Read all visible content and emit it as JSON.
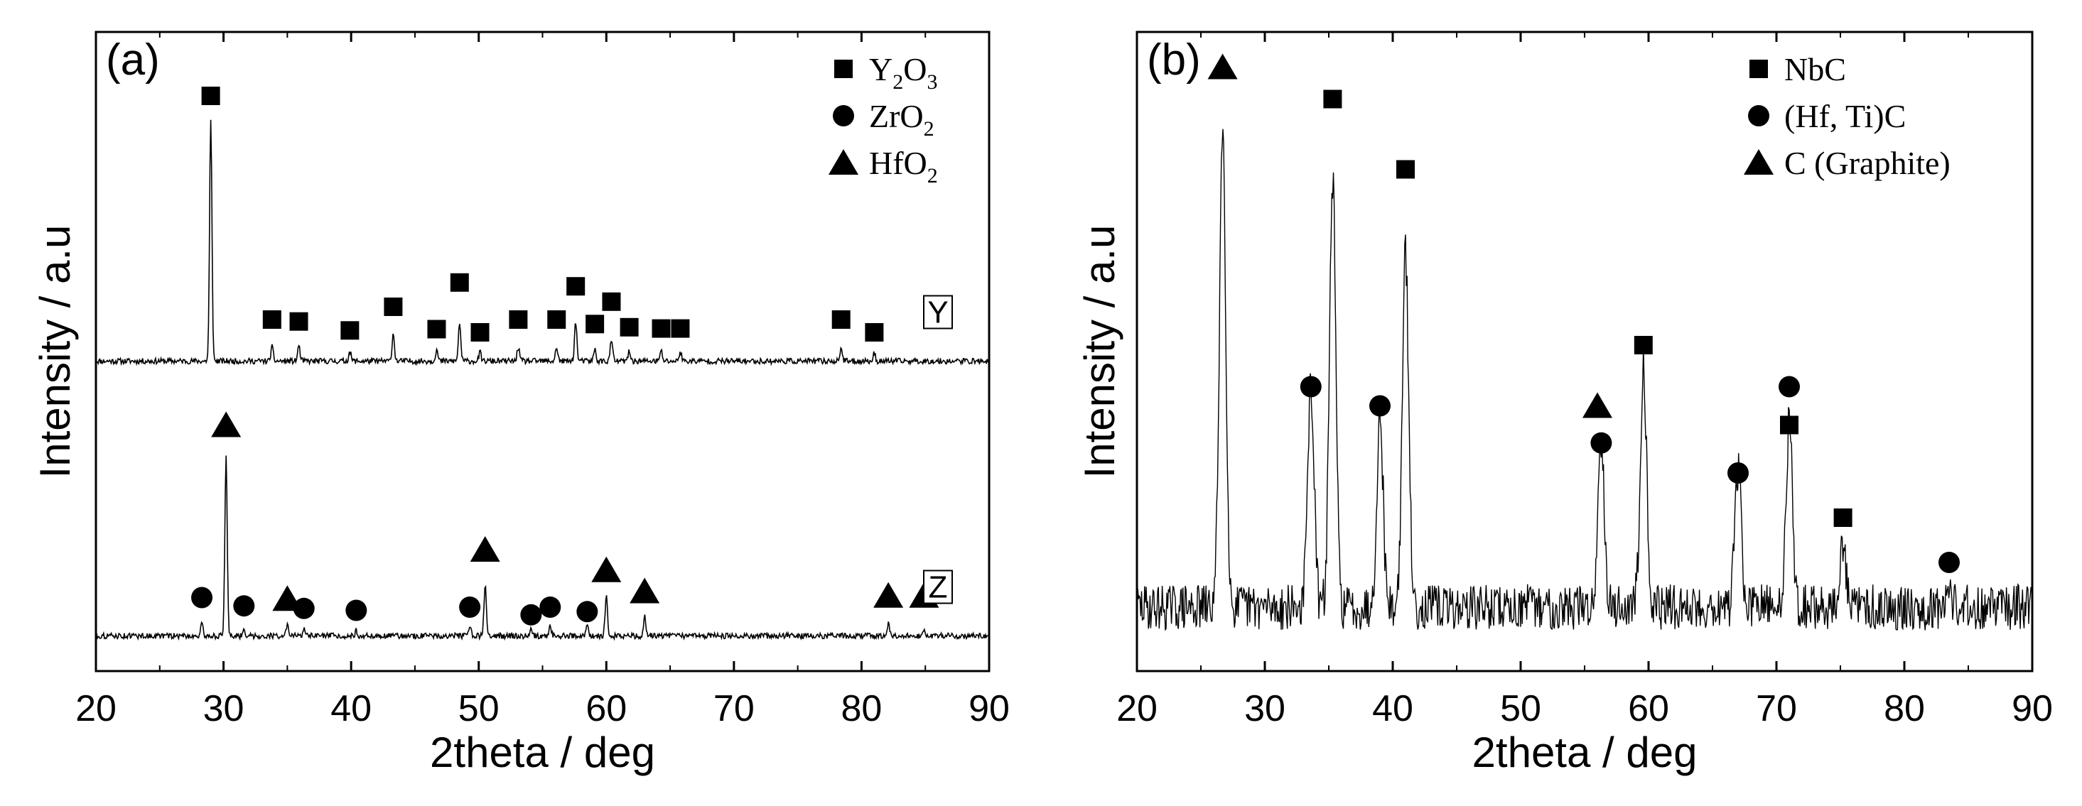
{
  "chart_data": [
    {
      "type": "line",
      "panel": "(a)",
      "xlabel": "2theta / deg",
      "ylabel": "Intensity / a.u",
      "xlim": [
        20,
        90
      ],
      "ylim": [
        0,
        100
      ],
      "xticks": [
        20,
        30,
        40,
        50,
        60,
        70,
        80,
        90
      ],
      "legend": {
        "position": "top-right",
        "entries": [
          {
            "marker": "square",
            "label": "Y",
            "sub1": "2",
            "mid": "O",
            "sub2": "3"
          },
          {
            "marker": "circle",
            "label": "ZrO",
            "sub1": "2",
            "mid": "",
            "sub2": ""
          },
          {
            "marker": "triangle",
            "label": "HfO",
            "sub1": "2",
            "mid": "",
            "sub2": ""
          }
        ]
      },
      "series": [
        {
          "name": "Y",
          "label": "Y",
          "baseline": 48.5,
          "peaks": [
            [
              29.0,
              37.5
            ],
            [
              33.8,
              2.2
            ],
            [
              35.9,
              2.4
            ],
            [
              39.9,
              1.5
            ],
            [
              43.3,
              4.3
            ],
            [
              46.7,
              1.8
            ],
            [
              48.5,
              6.0
            ],
            [
              50.1,
              1.3
            ],
            [
              53.1,
              2.2
            ],
            [
              56.1,
              2.2
            ],
            [
              57.6,
              6.2
            ],
            [
              59.1,
              1.8
            ],
            [
              60.4,
              3.4
            ],
            [
              61.8,
              1.5
            ],
            [
              64.3,
              1.6
            ],
            [
              65.8,
              1.5
            ],
            [
              78.4,
              2.1
            ],
            [
              81.0,
              1.2
            ]
          ],
          "markers": [
            {
              "x": 29.0,
              "y": 90.0,
              "shape": "square"
            },
            {
              "x": 33.8,
              "y": 55.0,
              "shape": "square"
            },
            {
              "x": 35.9,
              "y": 54.7,
              "shape": "square"
            },
            {
              "x": 39.9,
              "y": 53.3,
              "shape": "square"
            },
            {
              "x": 43.3,
              "y": 57.0,
              "shape": "square"
            },
            {
              "x": 46.7,
              "y": 53.5,
              "shape": "square"
            },
            {
              "x": 48.5,
              "y": 60.8,
              "shape": "square"
            },
            {
              "x": 50.1,
              "y": 53.0,
              "shape": "square"
            },
            {
              "x": 53.1,
              "y": 55.0,
              "shape": "square"
            },
            {
              "x": 56.1,
              "y": 55.0,
              "shape": "square"
            },
            {
              "x": 57.6,
              "y": 60.2,
              "shape": "square"
            },
            {
              "x": 59.1,
              "y": 54.3,
              "shape": "square"
            },
            {
              "x": 60.4,
              "y": 57.8,
              "shape": "square"
            },
            {
              "x": 61.8,
              "y": 53.8,
              "shape": "square"
            },
            {
              "x": 64.3,
              "y": 53.6,
              "shape": "square"
            },
            {
              "x": 65.8,
              "y": 53.6,
              "shape": "square"
            },
            {
              "x": 78.4,
              "y": 55.0,
              "shape": "square"
            },
            {
              "x": 81.0,
              "y": 53.0,
              "shape": "square"
            }
          ]
        },
        {
          "name": "Z",
          "label": "Z",
          "baseline": 5.5,
          "peaks": [
            [
              28.3,
              1.8
            ],
            [
              31.6,
              1.2
            ],
            [
              35.0,
              1.6
            ],
            [
              36.3,
              1.0
            ],
            [
              40.4,
              0.8
            ],
            [
              49.3,
              1.4
            ],
            [
              50.5,
              8.0
            ],
            [
              54.1,
              1.0
            ],
            [
              55.6,
              1.5
            ],
            [
              58.5,
              1.4
            ],
            [
              60.0,
              6.5
            ],
            [
              63.0,
              3.0
            ],
            [
              82.1,
              2.0
            ],
            [
              84.9,
              1.2
            ],
            [
              30.2,
              28.0
            ]
          ],
          "markers": [
            {
              "x": 30.2,
              "y": 38.5,
              "shape": "triangle"
            },
            {
              "x": 28.3,
              "y": 11.5,
              "shape": "circle"
            },
            {
              "x": 31.6,
              "y": 10.2,
              "shape": "circle"
            },
            {
              "x": 35.0,
              "y": 11.3,
              "shape": "triangle"
            },
            {
              "x": 36.3,
              "y": 9.8,
              "shape": "circle"
            },
            {
              "x": 40.4,
              "y": 9.5,
              "shape": "circle"
            },
            {
              "x": 49.3,
              "y": 10.0,
              "shape": "circle"
            },
            {
              "x": 50.5,
              "y": 19.0,
              "shape": "triangle"
            },
            {
              "x": 54.1,
              "y": 8.8,
              "shape": "circle"
            },
            {
              "x": 55.6,
              "y": 10.0,
              "shape": "circle"
            },
            {
              "x": 58.5,
              "y": 9.3,
              "shape": "circle"
            },
            {
              "x": 60.0,
              "y": 15.8,
              "shape": "triangle"
            },
            {
              "x": 63.0,
              "y": 12.5,
              "shape": "triangle"
            },
            {
              "x": 82.1,
              "y": 11.8,
              "shape": "triangle"
            },
            {
              "x": 84.9,
              "y": 11.8,
              "shape": "triangle"
            }
          ]
        }
      ]
    },
    {
      "type": "line",
      "panel": "(b)",
      "xlabel": "2theta / deg",
      "ylabel": "Intensity / a.u",
      "xlim": [
        20,
        90
      ],
      "ylim": [
        0,
        100
      ],
      "xticks": [
        20,
        30,
        40,
        50,
        60,
        70,
        80,
        90
      ],
      "legend": {
        "position": "top-right",
        "entries": [
          {
            "marker": "square",
            "label": "NbC",
            "sub1": "",
            "mid": "",
            "sub2": ""
          },
          {
            "marker": "circle",
            "label": "(Hf, Ti)C",
            "sub1": "",
            "mid": "",
            "sub2": ""
          },
          {
            "marker": "triangle",
            "label": "C (Graphite)",
            "sub1": "",
            "mid": "",
            "sub2": ""
          }
        ]
      },
      "series": [
        {
          "name": "b",
          "label": "",
          "baseline": 10.0,
          "peaks": [
            [
              26.7,
              75.0
            ],
            [
              33.6,
              35.0
            ],
            [
              35.3,
              67.0
            ],
            [
              39.0,
              30.0
            ],
            [
              41.0,
              55.0
            ],
            [
              56.3,
              27.0
            ],
            [
              59.6,
              38.0
            ],
            [
              67.0,
              22.0
            ],
            [
              71.0,
              29.0
            ],
            [
              75.2,
              9.0
            ],
            [
              83.5,
              3.0
            ]
          ],
          "markers": [
            {
              "x": 26.7,
              "y": 94.5,
              "shape": "triangle"
            },
            {
              "x": 35.3,
              "y": 89.5,
              "shape": "square"
            },
            {
              "x": 41.0,
              "y": 78.5,
              "shape": "square"
            },
            {
              "x": 33.6,
              "y": 44.5,
              "shape": "circle"
            },
            {
              "x": 39.0,
              "y": 41.5,
              "shape": "circle"
            },
            {
              "x": 56.0,
              "y": 41.5,
              "shape": "triangle"
            },
            {
              "x": 56.3,
              "y": 35.7,
              "shape": "circle"
            },
            {
              "x": 59.6,
              "y": 51.0,
              "shape": "square"
            },
            {
              "x": 67.0,
              "y": 31.0,
              "shape": "circle"
            },
            {
              "x": 71.0,
              "y": 44.5,
              "shape": "circle"
            },
            {
              "x": 71.0,
              "y": 38.5,
              "shape": "square"
            },
            {
              "x": 75.2,
              "y": 24.0,
              "shape": "square"
            },
            {
              "x": 83.5,
              "y": 17.0,
              "shape": "circle"
            }
          ]
        }
      ]
    }
  ]
}
